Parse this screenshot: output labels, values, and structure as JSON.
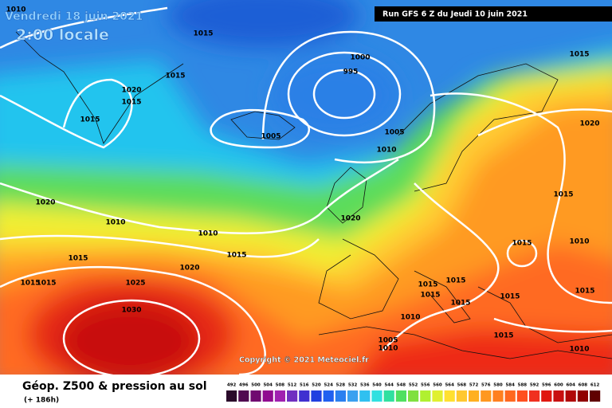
{
  "header": {
    "date": "Vendredi 18 juin 2021",
    "time": "2:00 locale",
    "run": "Run GFS 6 Z du Jeudi 10 juin 2021"
  },
  "isobar_labels": [
    1010,
    1015,
    1000,
    995,
    1015,
    1015,
    1020,
    1015,
    1015,
    1005,
    1005,
    1010,
    1020,
    1015,
    1020,
    1020,
    1010,
    1010,
    1015,
    1010,
    1015,
    1015,
    1020,
    1015,
    1015,
    1025,
    1015,
    1015,
    1015,
    1015,
    1015,
    1015,
    1030,
    1010,
    1005,
    1010,
    1015,
    1010
  ],
  "copyright": "Copyright © 2021 Meteociel.fr",
  "legend": {
    "title": "Géop. Z500 & pression au sol",
    "lead": "(+ 186h)",
    "items": [
      {
        "value": 492,
        "color": "#2a0a2a"
      },
      {
        "value": 496,
        "color": "#500a50"
      },
      {
        "value": 500,
        "color": "#700a70"
      },
      {
        "value": 504,
        "color": "#900a90"
      },
      {
        "value": 508,
        "color": "#a020b0"
      },
      {
        "value": 512,
        "color": "#7030c0"
      },
      {
        "value": 516,
        "color": "#4030d0"
      },
      {
        "value": 520,
        "color": "#2040e0"
      },
      {
        "value": 524,
        "color": "#2060f0"
      },
      {
        "value": 528,
        "color": "#2a80f0"
      },
      {
        "value": 532,
        "color": "#3aa0f0"
      },
      {
        "value": 536,
        "color": "#30c0f0"
      },
      {
        "value": 540,
        "color": "#30e0e0"
      },
      {
        "value": 544,
        "color": "#30e0a0"
      },
      {
        "value": 548,
        "color": "#50e060"
      },
      {
        "value": 552,
        "color": "#80e040"
      },
      {
        "value": 556,
        "color": "#b0f030"
      },
      {
        "value": 560,
        "color": "#e0f030"
      },
      {
        "value": 564,
        "color": "#ffe030"
      },
      {
        "value": 568,
        "color": "#ffc830"
      },
      {
        "value": 572,
        "color": "#ffb020"
      },
      {
        "value": 576,
        "color": "#ff9820"
      },
      {
        "value": 580,
        "color": "#ff8020"
      },
      {
        "value": 584,
        "color": "#ff6820"
      },
      {
        "value": 588,
        "color": "#ff5020"
      },
      {
        "value": 592,
        "color": "#f03020"
      },
      {
        "value": 596,
        "color": "#e01810"
      },
      {
        "value": 600,
        "color": "#c81010"
      },
      {
        "value": 604,
        "color": "#b00808"
      },
      {
        "value": 608,
        "color": "#900000"
      },
      {
        "value": 612,
        "color": "#600000"
      }
    ]
  }
}
